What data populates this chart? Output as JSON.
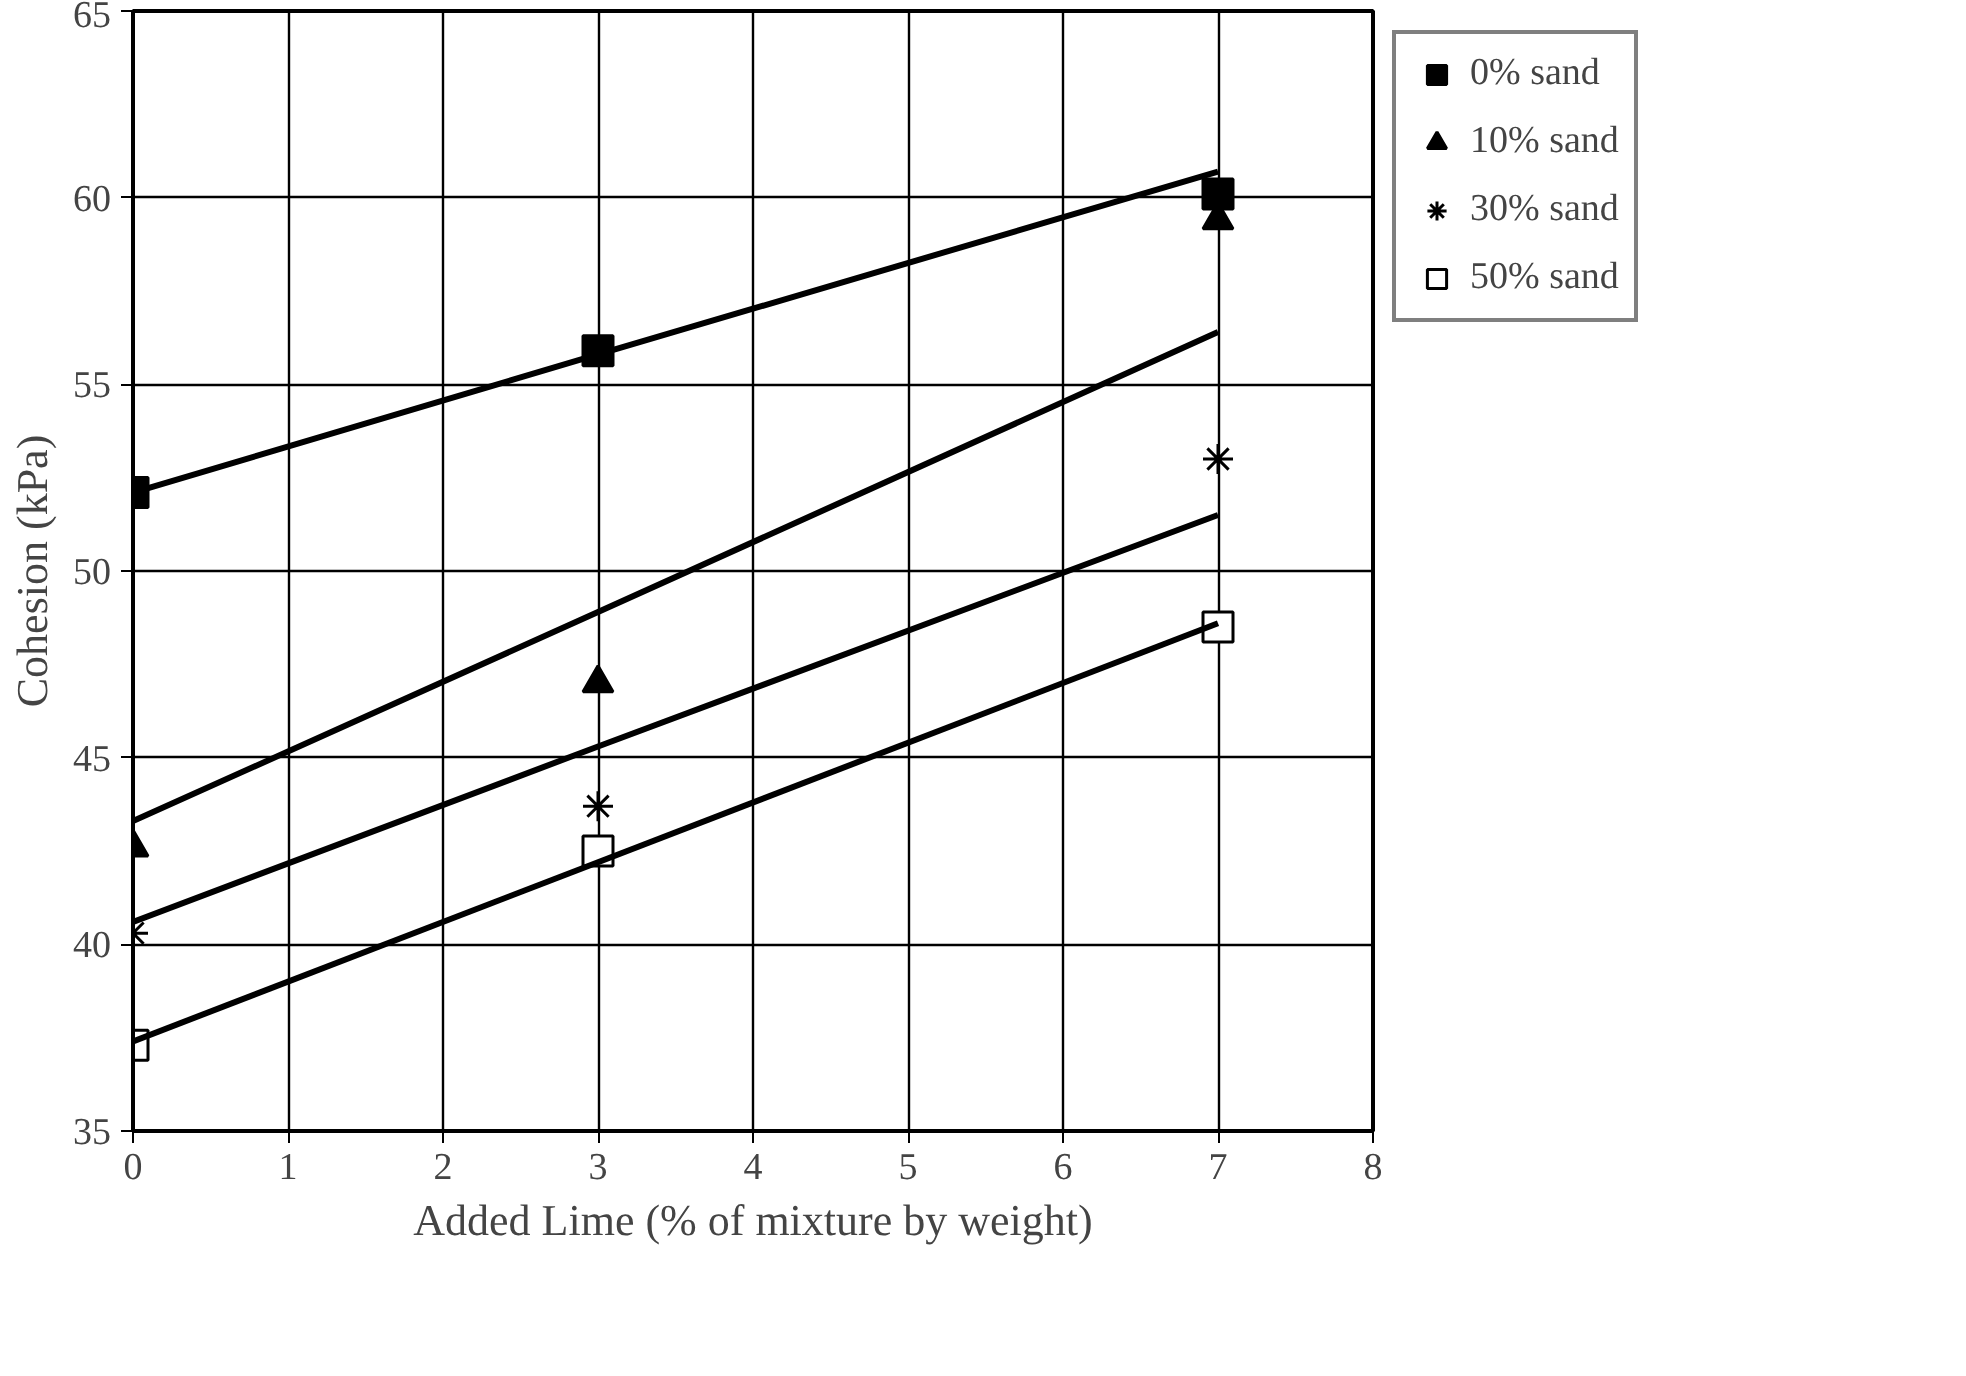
{
  "chart_data": {
    "type": "scatter",
    "xlabel": "Added Lime (% of mixture by weight)",
    "ylabel": "Cohesion (kPa)",
    "x": [
      0,
      3,
      7
    ],
    "series": [
      {
        "name": "0% sand",
        "color": "#000000",
        "marker": "square",
        "values": [
          52.1,
          55.9,
          60.1
        ]
      },
      {
        "name": "10% sand",
        "color": "#000000",
        "marker": "triangle",
        "values": [
          42.6,
          47.0,
          59.4
        ]
      },
      {
        "name": "30% sand",
        "color": "#000000",
        "marker": "cross",
        "values": [
          40.3,
          43.7,
          53.0
        ]
      },
      {
        "name": "50% sand",
        "color": "#ffffff",
        "marker": "square",
        "values": [
          37.3,
          42.5,
          48.5
        ]
      },
      {
        "type": "line",
        "color": "#000000",
        "values": [
          52.1,
          55.8,
          60.7
        ]
      },
      {
        "type": "line",
        "color": "#000000",
        "values": [
          43.3,
          48.9,
          56.4
        ]
      },
      {
        "type": "line",
        "color": "#000000",
        "values": [
          40.6,
          45.3,
          51.5
        ]
      },
      {
        "type": "line",
        "color": "#000000",
        "values": [
          37.4,
          42.2,
          48.6
        ]
      }
    ],
    "xlim": [
      0,
      8
    ],
    "xticks": [
      0,
      1,
      2,
      3,
      4,
      5,
      6,
      7,
      8
    ],
    "ylim": [
      35,
      65
    ],
    "yticks": [
      35,
      40,
      45,
      50,
      55,
      60,
      65
    ],
    "grid": true,
    "legend": "right"
  }
}
